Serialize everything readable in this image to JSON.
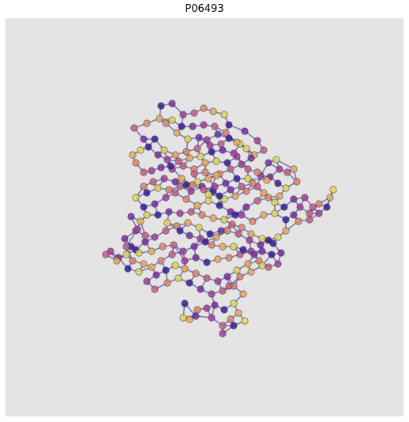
{
  "title": "P06493",
  "palette": [
    "#3a1f9c",
    "#7b2ea8",
    "#a83d9e",
    "#cc5f88",
    "#e2896b",
    "#eeae58",
    "#eadb55"
  ]
}
